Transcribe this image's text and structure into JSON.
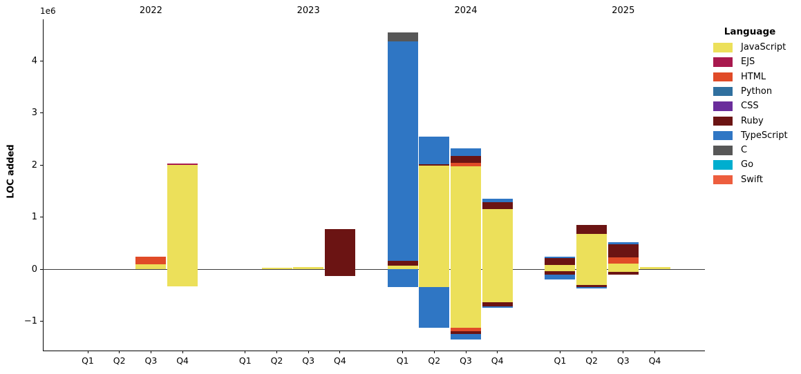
{
  "figure": {
    "background": "#ffffff",
    "y_axis": {
      "label": "LOC added",
      "offset_text": "1e6",
      "tick_labels": [
        "4",
        "3",
        "2",
        "1",
        "0",
        "−1"
      ],
      "tick_values": [
        4000000,
        3000000,
        2000000,
        1000000,
        0,
        -1000000
      ]
    },
    "x_axis": {
      "quarter_labels": [
        "Q1",
        "Q2",
        "Q3",
        "Q4"
      ],
      "year_labels": [
        "2022",
        "2023",
        "2024",
        "2025"
      ]
    },
    "legend": {
      "title": "Language",
      "items": [
        {
          "label": "JavaScript",
          "color": "#ece05a"
        },
        {
          "label": "EJS",
          "color": "#a8194e"
        },
        {
          "label": "HTML",
          "color": "#e04b28"
        },
        {
          "label": "Python",
          "color": "#30709f"
        },
        {
          "label": "CSS",
          "color": "#6a2d9b"
        },
        {
          "label": "Ruby",
          "color": "#6b1413"
        },
        {
          "label": "TypeScript",
          "color": "#2f76c4"
        },
        {
          "label": "C",
          "color": "#575757"
        },
        {
          "label": "Go",
          "color": "#00aecf"
        },
        {
          "label": "Swift",
          "color": "#ed5e3e"
        }
      ]
    }
  },
  "chart_data": {
    "type": "bar",
    "stacked": true,
    "title": "",
    "xlabel": "",
    "ylabel": "LOC added",
    "y_unit_multiplier": "1e6",
    "ylim": [
      -1560000,
      4800000
    ],
    "grid": false,
    "legend_position": "outside upper right",
    "categories": [
      "2022 Q1",
      "2022 Q2",
      "2022 Q3",
      "2022 Q4",
      "2023 Q1",
      "2023 Q2",
      "2023 Q3",
      "2023 Q4",
      "2024 Q1",
      "2024 Q2",
      "2024 Q3",
      "2024 Q4",
      "2025 Q1",
      "2025 Q2",
      "2025 Q3",
      "2025 Q4"
    ],
    "series": [
      {
        "name": "JavaScript",
        "color": "#ece05a",
        "positive": [
          0,
          0,
          90000,
          2000000,
          0,
          20000,
          40000,
          0,
          70000,
          1990000,
          1970000,
          1150000,
          80000,
          670000,
          110000,
          40000
        ],
        "negative": [
          0,
          0,
          0,
          -330000,
          0,
          0,
          0,
          0,
          0,
          -350000,
          -1120000,
          -630000,
          -40000,
          -300000,
          -50000,
          0
        ]
      },
      {
        "name": "EJS",
        "color": "#a8194e",
        "positive": [
          0,
          0,
          0,
          30000,
          0,
          0,
          0,
          0,
          0,
          0,
          0,
          0,
          0,
          0,
          0,
          0
        ],
        "negative": [
          0,
          0,
          0,
          0,
          0,
          0,
          0,
          0,
          0,
          0,
          0,
          0,
          0,
          0,
          0,
          0
        ]
      },
      {
        "name": "HTML",
        "color": "#e04b28",
        "positive": [
          0,
          0,
          150000,
          0,
          0,
          0,
          0,
          0,
          0,
          0,
          70000,
          0,
          0,
          0,
          120000,
          0
        ],
        "negative": [
          0,
          0,
          0,
          0,
          0,
          0,
          0,
          0,
          0,
          0,
          -70000,
          0,
          0,
          0,
          0,
          0
        ]
      },
      {
        "name": "Python",
        "color": "#30709f",
        "positive": [
          0,
          0,
          0,
          0,
          0,
          0,
          0,
          0,
          0,
          0,
          0,
          0,
          0,
          0,
          0,
          0
        ],
        "negative": [
          0,
          0,
          0,
          0,
          0,
          0,
          0,
          0,
          0,
          0,
          0,
          0,
          0,
          0,
          0,
          0
        ]
      },
      {
        "name": "CSS",
        "color": "#6a2d9b",
        "positive": [
          0,
          0,
          0,
          0,
          0,
          0,
          0,
          0,
          0,
          0,
          0,
          0,
          0,
          0,
          0,
          0
        ],
        "negative": [
          0,
          0,
          0,
          0,
          0,
          0,
          0,
          0,
          0,
          0,
          0,
          0,
          0,
          0,
          0,
          0
        ]
      },
      {
        "name": "Ruby",
        "color": "#6b1413",
        "positive": [
          0,
          0,
          0,
          0,
          0,
          0,
          0,
          770000,
          90000,
          20000,
          130000,
          140000,
          130000,
          180000,
          250000,
          0
        ],
        "negative": [
          0,
          0,
          0,
          0,
          0,
          0,
          0,
          -130000,
          0,
          0,
          -60000,
          -90000,
          -60000,
          -40000,
          -60000,
          0
        ]
      },
      {
        "name": "TypeScript",
        "color": "#2f76c4",
        "positive": [
          0,
          0,
          0,
          0,
          0,
          0,
          0,
          0,
          4210000,
          530000,
          150000,
          60000,
          30000,
          0,
          30000,
          0
        ],
        "negative": [
          0,
          0,
          0,
          0,
          0,
          0,
          0,
          0,
          -350000,
          -770000,
          -100000,
          -20000,
          -100000,
          -35000,
          0,
          0
        ]
      },
      {
        "name": "C",
        "color": "#575757",
        "positive": [
          0,
          0,
          0,
          0,
          0,
          0,
          0,
          0,
          170000,
          0,
          0,
          0,
          0,
          0,
          0,
          0
        ],
        "negative": [
          0,
          0,
          0,
          0,
          0,
          0,
          0,
          0,
          0,
          0,
          0,
          0,
          0,
          0,
          0,
          0
        ]
      },
      {
        "name": "Go",
        "color": "#00aecf",
        "positive": [
          0,
          0,
          0,
          0,
          0,
          0,
          0,
          0,
          0,
          0,
          0,
          0,
          0,
          0,
          0,
          0
        ],
        "negative": [
          0,
          0,
          0,
          0,
          0,
          0,
          0,
          0,
          0,
          0,
          0,
          0,
          0,
          0,
          0,
          0
        ]
      },
      {
        "name": "Swift",
        "color": "#ed5e3e",
        "positive": [
          0,
          0,
          0,
          0,
          0,
          0,
          0,
          0,
          0,
          0,
          0,
          0,
          0,
          0,
          0,
          0
        ],
        "negative": [
          0,
          0,
          0,
          0,
          0,
          0,
          0,
          0,
          0,
          0,
          0,
          0,
          0,
          0,
          0,
          0
        ]
      }
    ]
  }
}
